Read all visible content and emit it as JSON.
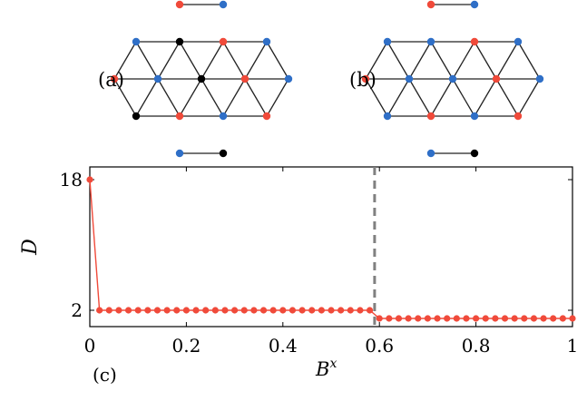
{
  "panels": {
    "a_label": "(a)",
    "b_label": "(b)",
    "c_label": "(c)"
  },
  "colors": {
    "red": "#f04a3a",
    "blue": "#2f6fc7",
    "black": "#000000",
    "line": "#222222",
    "dashed": "#808080"
  },
  "lattice_a": {
    "site_colors": [
      "red",
      "blue",
      "blue",
      "black",
      "red",
      "blue",
      "red",
      "blue",
      "black",
      "red",
      "blue",
      "black",
      "red",
      "blue",
      "red",
      "blue"
    ]
  },
  "lattice_b": {
    "site_colors": [
      "red",
      "blue",
      "blue",
      "blue",
      "red",
      "blue",
      "red",
      "blue",
      "blue",
      "red",
      "blue",
      "blue",
      "red",
      "blue",
      "red",
      "blue"
    ]
  },
  "chart_data": {
    "type": "line",
    "xlabel_base": "B",
    "xlabel_sup": "x",
    "ylabel": "D",
    "xlim": [
      0,
      1
    ],
    "x_ticks": [
      "0",
      "0.2",
      "0.4",
      "0.6",
      "0.8",
      "1"
    ],
    "x_tick_values": [
      0,
      0.2,
      0.4,
      0.6,
      0.8,
      1
    ],
    "y_ticks": [
      "2",
      "18"
    ],
    "y_tick_values": [
      2,
      18
    ],
    "dashed_vline_x": 0.59,
    "series": [
      {
        "x": [
          0,
          0.02,
          0.04,
          0.06,
          0.08,
          0.1,
          0.12,
          0.14,
          0.16,
          0.18,
          0.2,
          0.22,
          0.24,
          0.26,
          0.28,
          0.3,
          0.32,
          0.34,
          0.36,
          0.38,
          0.4,
          0.42,
          0.44,
          0.46,
          0.48,
          0.5,
          0.52,
          0.54,
          0.56,
          0.58,
          0.6,
          0.62,
          0.64,
          0.66,
          0.68,
          0.7,
          0.72,
          0.74,
          0.76,
          0.78,
          0.8,
          0.82,
          0.84,
          0.86,
          0.88,
          0.9,
          0.92,
          0.94,
          0.96,
          0.98,
          1.0
        ],
        "y": [
          18,
          2,
          2,
          2,
          2,
          2,
          2,
          2,
          2,
          2,
          2,
          2,
          2,
          2,
          2,
          2,
          2,
          2,
          2,
          2,
          2,
          2,
          2,
          2,
          2,
          2,
          2,
          2,
          2,
          2,
          1,
          1,
          1,
          1,
          1,
          1,
          1,
          1,
          1,
          1,
          1,
          1,
          1,
          1,
          1,
          1,
          1,
          1,
          1,
          1,
          1
        ]
      }
    ]
  }
}
